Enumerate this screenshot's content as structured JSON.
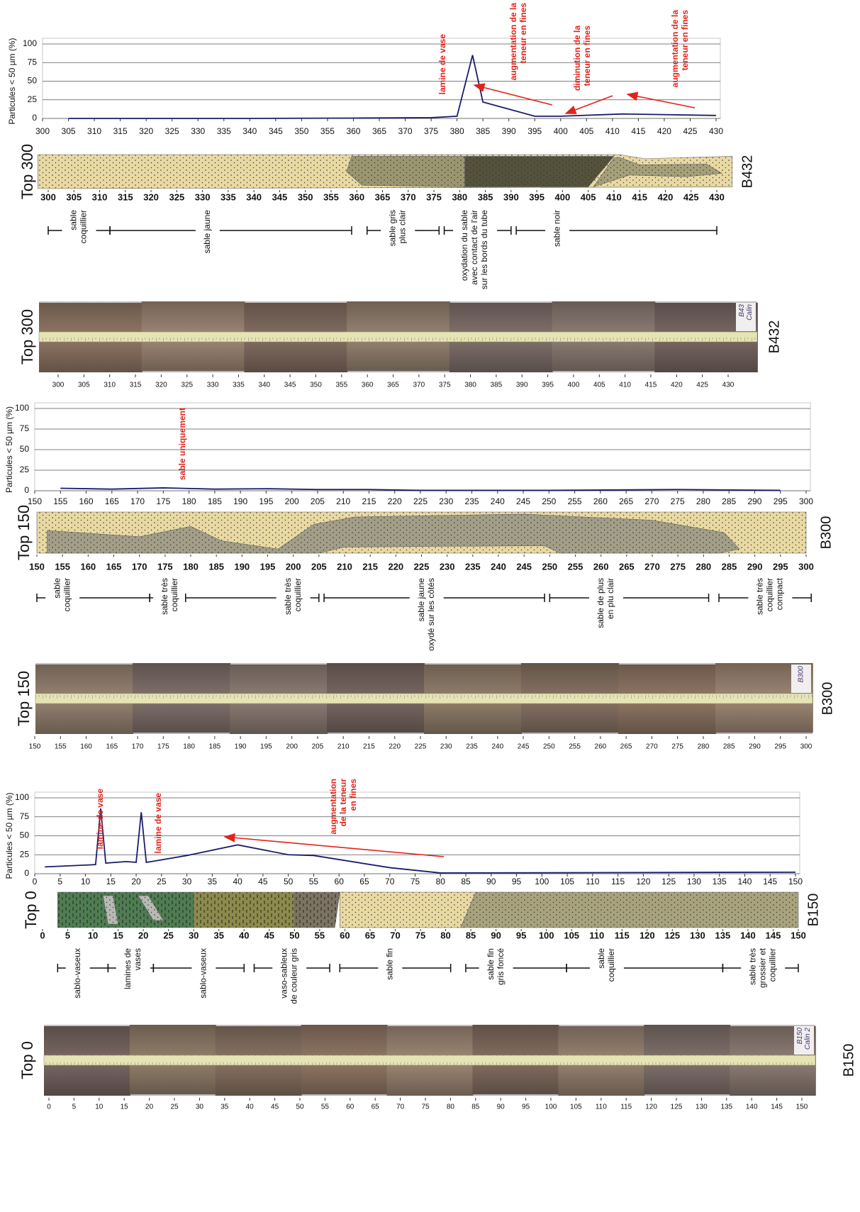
{
  "chart_data": [
    {
      "type": "line",
      "y_label": "Particules < 50 µm (%)",
      "color": "#1c1c6b",
      "x": [
        305,
        320,
        340,
        360,
        375,
        380,
        383,
        385,
        395,
        400,
        412,
        430
      ],
      "values": [
        0,
        0,
        0,
        0.5,
        1,
        3,
        85,
        22,
        3,
        3,
        6,
        4
      ],
      "xlim": [
        300,
        430
      ],
      "ylim": [
        0,
        100
      ],
      "xticks": [
        300,
        305,
        310,
        315,
        320,
        325,
        330,
        335,
        340,
        345,
        350,
        355,
        360,
        365,
        370,
        375,
        380,
        385,
        390,
        395,
        400,
        405,
        410,
        415,
        420,
        425,
        430
      ],
      "yticks": [
        0,
        25,
        50,
        75,
        100
      ],
      "grid": true,
      "annotation_color": "#e2231a",
      "annotations": [
        {
          "lines": [
            "lamine de vase"
          ]
        },
        {
          "lines": [
            "augmentation de la",
            "teneur en fines"
          ]
        },
        {
          "lines": [
            "diminution de la",
            "teneur en fines"
          ]
        },
        {
          "lines": [
            "augmentation de la",
            "teneur en fines"
          ]
        }
      ]
    },
    {
      "type": "line",
      "y_label": "Particules < 50 µm (%)",
      "color": "#1c1c6b",
      "x": [
        155,
        165,
        175,
        185,
        195,
        205,
        215,
        225,
        250,
        275,
        295
      ],
      "values": [
        3,
        2,
        3.5,
        2,
        2.5,
        1.5,
        1.5,
        0.5,
        0.5,
        1.5,
        0.5
      ],
      "xlim": [
        150,
        300
      ],
      "ylim": [
        0,
        100
      ],
      "xticks": [
        150,
        155,
        160,
        165,
        170,
        175,
        180,
        185,
        190,
        195,
        200,
        205,
        210,
        215,
        220,
        225,
        230,
        235,
        240,
        245,
        250,
        255,
        260,
        265,
        270,
        275,
        280,
        285,
        290,
        295,
        300
      ],
      "yticks": [
        0,
        25,
        50,
        75,
        100
      ],
      "grid": true,
      "annotation_color": "#e2231a",
      "annotations": [
        {
          "lines": [
            "sable uniquement"
          ]
        }
      ]
    },
    {
      "type": "line",
      "y_label": "Particules < 50 µm (%)",
      "color": "#1c1c6b",
      "x": [
        2,
        12,
        13,
        14,
        18,
        20,
        21,
        22,
        23,
        30,
        40,
        50,
        55,
        70,
        80,
        150
      ],
      "values": [
        9,
        12,
        86,
        14,
        16,
        15,
        81,
        15,
        16,
        24,
        38,
        25,
        24,
        8,
        1,
        2
      ],
      "xlim": [
        0,
        150
      ],
      "ylim": [
        0,
        100
      ],
      "xticks": [
        0,
        5,
        10,
        15,
        20,
        25,
        30,
        35,
        40,
        45,
        50,
        55,
        60,
        65,
        70,
        75,
        80,
        85,
        90,
        95,
        100,
        105,
        110,
        115,
        120,
        125,
        130,
        135,
        140,
        145,
        150
      ],
      "yticks": [
        0,
        25,
        50,
        75,
        100
      ],
      "grid": true,
      "annotation_color": "#e2231a",
      "annotations": [
        {
          "lines": [
            "lamine de vase"
          ]
        },
        {
          "lines": [
            "lamine de vase"
          ]
        },
        {
          "lines": [
            "augmentation",
            "de la teneur",
            "en fines"
          ]
        }
      ]
    }
  ],
  "cores": [
    {
      "log_top": "Top 300",
      "log_name": "B432",
      "log_ticks": [
        300,
        305,
        310,
        315,
        320,
        325,
        330,
        335,
        340,
        345,
        350,
        355,
        360,
        365,
        370,
        375,
        380,
        385,
        390,
        395,
        400,
        405,
        410,
        415,
        420,
        425,
        430
      ],
      "descriptions": [
        {
          "lines": [
            "sable",
            "coquillier"
          ]
        },
        {
          "lines": [
            "sable jaune"
          ]
        },
        {
          "lines": [
            "sable gris",
            "plus clair"
          ]
        },
        {
          "lines": [
            "oxydation du sable",
            "avec contact de l'air",
            "sur les bords du tube"
          ]
        },
        {
          "lines": [
            "sable noir"
          ]
        }
      ],
      "photo_top": "Top 300",
      "photo_name": "B432",
      "photo_note": [
        "B43",
        "Calin"
      ],
      "photo_ticks": [
        300,
        305,
        310,
        315,
        320,
        325,
        330,
        335,
        340,
        345,
        350,
        355,
        360,
        365,
        370,
        375,
        380,
        385,
        390,
        395,
        400,
        405,
        410,
        415,
        420,
        425,
        430
      ]
    },
    {
      "log_top": "Top 150",
      "log_name": "B300",
      "log_ticks": [
        150,
        155,
        160,
        165,
        170,
        175,
        180,
        185,
        190,
        195,
        200,
        205,
        210,
        215,
        220,
        225,
        230,
        235,
        240,
        245,
        250,
        255,
        260,
        265,
        270,
        275,
        280,
        285,
        290,
        295,
        300
      ],
      "descriptions": [
        {
          "lines": [
            "sable",
            "coquillier"
          ]
        },
        {
          "lines": [
            "sable très",
            "coquillier"
          ]
        },
        {
          "lines": [
            "sable très",
            "coquillier"
          ]
        },
        {
          "lines": [
            "sable jaune",
            "oxydé sur les côtés"
          ]
        },
        {
          "lines": [
            "sable de plus",
            "en plu clair"
          ]
        },
        {
          "lines": [
            "sable très",
            "coquillier",
            "compact"
          ]
        }
      ],
      "photo_top": "Top 150",
      "photo_name": "B300",
      "photo_note": [
        "B300"
      ],
      "photo_ticks": [
        150,
        155,
        160,
        165,
        170,
        175,
        180,
        185,
        190,
        195,
        200,
        205,
        210,
        215,
        220,
        225,
        230,
        235,
        240,
        245,
        250,
        255,
        260,
        265,
        270,
        275,
        280,
        285,
        290,
        295,
        300
      ]
    },
    {
      "log_top": "Top 0",
      "log_name": "B150",
      "log_ticks": [
        0,
        5,
        10,
        15,
        20,
        25,
        30,
        35,
        40,
        45,
        50,
        55,
        60,
        65,
        70,
        75,
        80,
        85,
        90,
        95,
        100,
        105,
        110,
        115,
        120,
        125,
        130,
        135,
        140,
        145,
        150
      ],
      "descriptions": [
        {
          "lines": [
            "sablo-vaseux"
          ]
        },
        {
          "lines": [
            "lamines de",
            "vases"
          ]
        },
        {
          "lines": [
            "sablo-vaseux"
          ]
        },
        {
          "lines": [
            "vaso-sableux",
            "de couleur gris"
          ]
        },
        {
          "lines": [
            "sable fin"
          ]
        },
        {
          "lines": [
            "sable fin",
            "gris foncé"
          ]
        },
        {
          "lines": [
            "sable",
            "coquillier"
          ]
        },
        {
          "lines": [
            "sable très",
            "grossier et",
            "coquillier"
          ]
        }
      ],
      "photo_top": "Top 0",
      "photo_name": "B150",
      "photo_note": [
        "B150",
        "Calin 2"
      ],
      "photo_ticks": [
        0,
        5,
        10,
        15,
        20,
        25,
        30,
        35,
        40,
        45,
        50,
        55,
        60,
        65,
        70,
        75,
        80,
        85,
        90,
        95,
        100,
        105,
        110,
        115,
        120,
        125,
        130,
        135,
        140,
        145,
        150
      ]
    }
  ]
}
